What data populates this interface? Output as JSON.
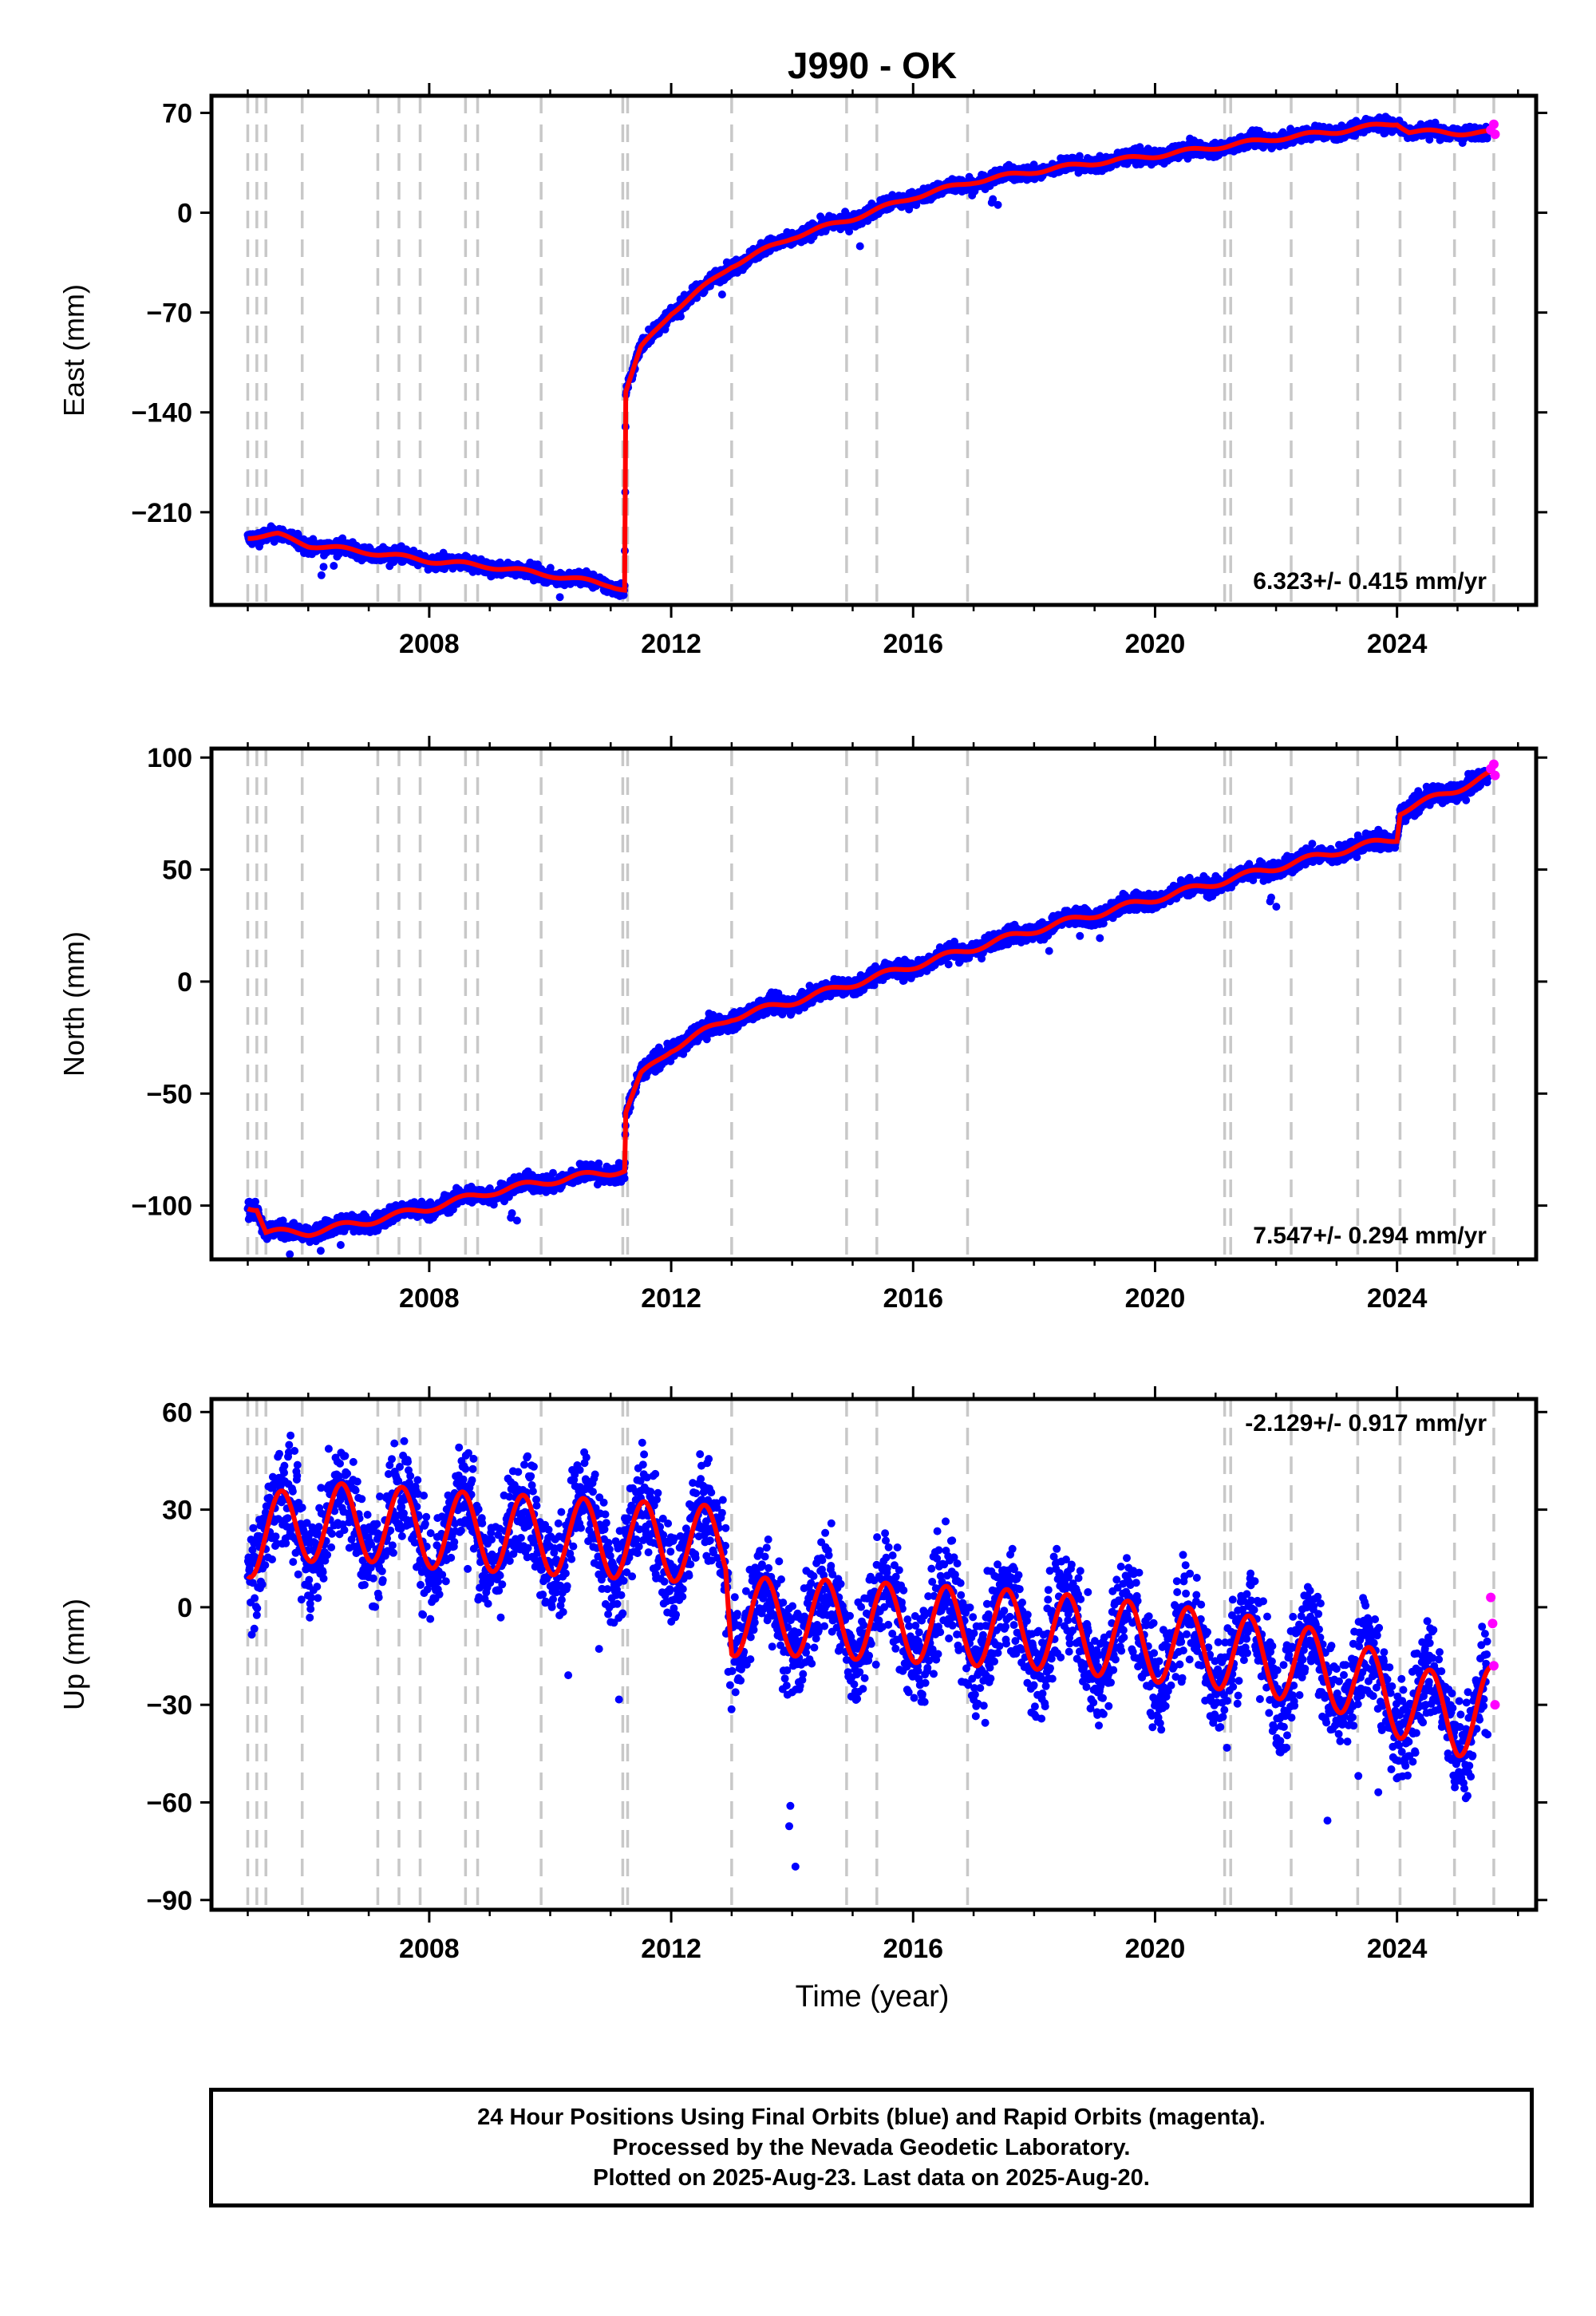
{
  "colors": {
    "final": "#0000ff",
    "rapid": "#ff00ff",
    "model": "#ff0000",
    "steps": "#c8c8c8"
  },
  "chart_data": {
    "type": "scatter",
    "title": "J990 - OK",
    "xlabel": "Time (year)",
    "xlim": [
      2004.4,
      2026.3
    ],
    "x_ticks": [
      2008,
      2012,
      2016,
      2020,
      2024
    ],
    "step_epochs": [
      2005.0,
      2005.15,
      2005.3,
      2005.9,
      2007.15,
      2007.5,
      2007.85,
      2008.6,
      2008.8,
      2009.85,
      2011.2,
      2011.28,
      2013.0,
      2014.9,
      2015.4,
      2016.9,
      2021.15,
      2021.25,
      2022.25,
      2023.35,
      2024.05,
      2024.95,
      2025.6
    ],
    "series": [
      {
        "name": "Final Orbits",
        "color": "blue"
      },
      {
        "name": "Rapid Orbits",
        "color": "magenta"
      }
    ],
    "panels": [
      {
        "component": "East",
        "ylabel": "East (mm)",
        "ylim": [
          -275,
          82
        ],
        "y_ticks": [
          70,
          0,
          -70,
          -140,
          -210
        ],
        "rate": "6.323+/- 0.415 mm/yr",
        "rate_position": "bottom-right",
        "model": {
          "x": [
            2005.0,
            2005.5,
            2006.0,
            2007.0,
            2008.0,
            2009.0,
            2010.0,
            2011.0,
            2011.23,
            2011.25,
            2011.5,
            2012.0,
            2013.0,
            2014.0,
            2015.0,
            2016.0,
            2017.0,
            2018.0,
            2019.0,
            2020.0,
            2021.0,
            2022.0,
            2023.0,
            2024.0,
            2024.2,
            2025.0,
            2025.6
          ],
          "y": [
            -227,
            -226,
            -233,
            -238,
            -244,
            -248,
            -254,
            -261,
            -264,
            -125,
            -95,
            -70,
            -37,
            -17,
            -4,
            11,
            22,
            29,
            35,
            40,
            46,
            52,
            57,
            63,
            57,
            56,
            56
          ]
        },
        "rapid": {
          "x": [
            2025.55,
            2025.6,
            2025.62
          ],
          "y": [
            58,
            62,
            55
          ]
        },
        "noise": 2.5,
        "seasonal": 1.5
      },
      {
        "component": "North",
        "ylabel": "North (mm)",
        "ylim": [
          -124,
          104
        ],
        "y_ticks": [
          100,
          50,
          0,
          -50,
          -100
        ],
        "rate": "7.547+/- 0.294 mm/yr",
        "rate_position": "bottom-right",
        "model": {
          "x": [
            2005.0,
            2005.15,
            2005.3,
            2006.0,
            2007.0,
            2008.0,
            2009.0,
            2010.0,
            2011.0,
            2011.23,
            2011.25,
            2011.5,
            2012.0,
            2013.0,
            2014.0,
            2015.0,
            2016.0,
            2017.0,
            2018.0,
            2019.0,
            2020.0,
            2021.0,
            2022.0,
            2023.0,
            2024.0,
            2024.05,
            2025.0,
            2025.6
          ],
          "y": [
            -100,
            -101,
            -112,
            -112,
            -107,
            -101,
            -94,
            -89,
            -85,
            -84,
            -58,
            -42,
            -30,
            -16,
            -9,
            -1,
            7,
            15,
            23,
            30,
            37,
            44,
            51,
            58,
            64,
            76,
            86,
            93
          ]
        },
        "rapid": {
          "x": [
            2025.55,
            2025.6,
            2025.62
          ],
          "y": [
            95,
            97,
            92
          ]
        },
        "noise": 2.0,
        "seasonal": 1.5
      },
      {
        "component": "Up",
        "ylabel": "Up (mm)",
        "ylim": [
          -93,
          64
        ],
        "y_ticks": [
          60,
          30,
          0,
          -30,
          -60,
          -90
        ],
        "rate": "-2.129+/- 0.917 mm/yr",
        "rate_position": "top-right",
        "model": {
          "x": [
            2005.0,
            2006.0,
            2007.0,
            2008.0,
            2009.0,
            2010.0,
            2011.0,
            2012.0,
            2012.9,
            2013.0,
            2014.0,
            2015.0,
            2016.0,
            2017.0,
            2018.0,
            2019.0,
            2020.0,
            2021.0,
            2022.0,
            2023.0,
            2024.0,
            2025.0,
            2025.6
          ],
          "y": [
            21,
            26,
            26,
            24,
            23,
            22,
            21,
            20,
            19,
            -3,
            -3,
            -4,
            -5,
            -6,
            -7,
            -9,
            -11,
            -13,
            -16,
            -20,
            -28,
            -34,
            -30
          ]
        },
        "rapid": {
          "x": [
            2025.55,
            2025.58,
            2025.6,
            2025.62
          ],
          "y": [
            3,
            -5,
            -18,
            -30
          ]
        },
        "noise": 8.0,
        "seasonal": 12.0
      }
    ]
  },
  "footer": {
    "line1": "24 Hour Positions Using Final Orbits (blue) and Rapid Orbits (magenta).",
    "line2": "Processed by the Nevada Geodetic Laboratory.",
    "line3": "Plotted on 2025-Aug-23. Last data on 2025-Aug-20."
  }
}
